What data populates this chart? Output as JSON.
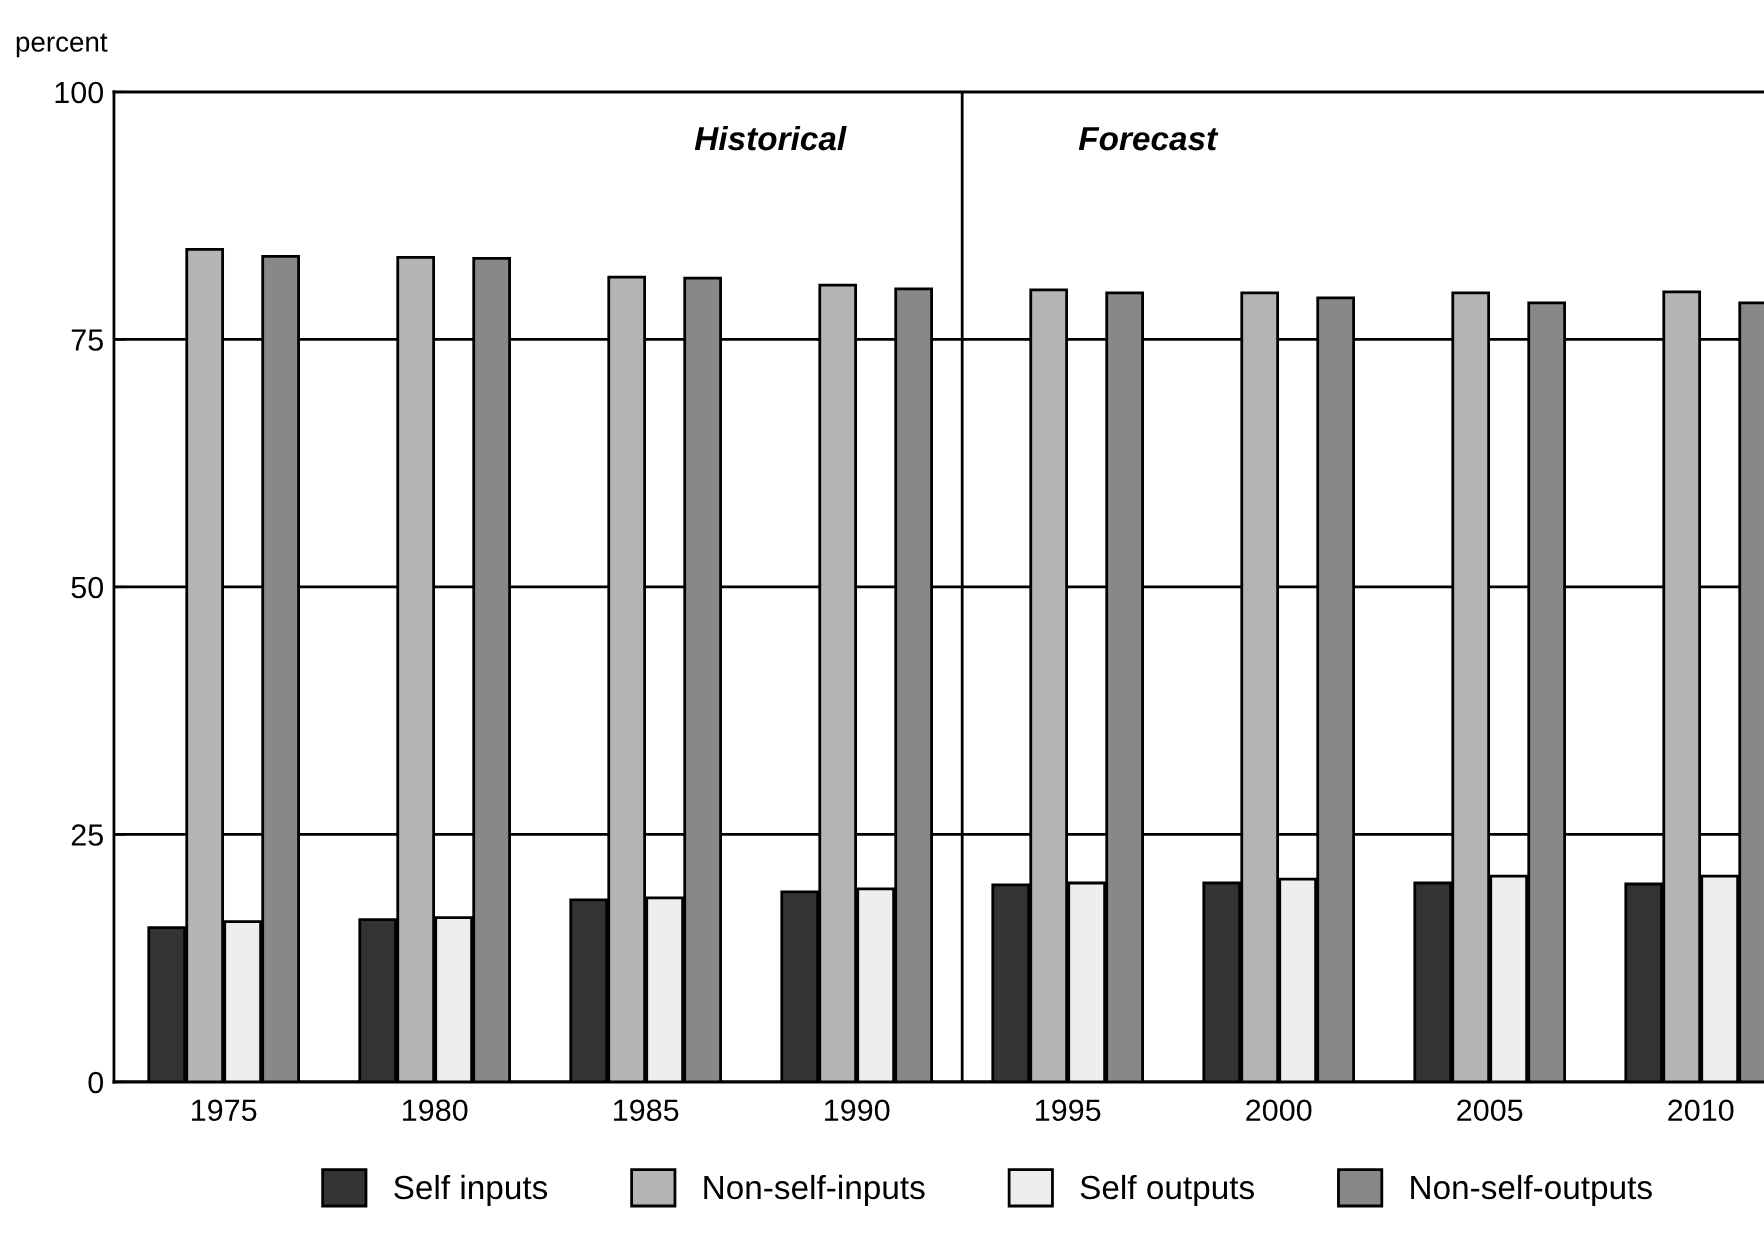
{
  "chart_data": {
    "type": "bar",
    "ylabel": "percent",
    "categories": [
      "1975",
      "1980",
      "1985",
      "1990",
      "1995",
      "2000",
      "2005",
      "2010"
    ],
    "series": [
      {
        "name": "Self inputs",
        "color": "#333333",
        "values": [
          15.6,
          16.4,
          18.4,
          19.2,
          19.9,
          20.1,
          20.1,
          20.0
        ]
      },
      {
        "name": "Non-self-inputs",
        "color": "#b4b4b4",
        "values": [
          84.1,
          83.3,
          81.3,
          80.5,
          80.0,
          79.7,
          79.7,
          79.8
        ]
      },
      {
        "name": "Self outputs",
        "color": "#eeeeee",
        "values": [
          16.2,
          16.6,
          18.6,
          19.5,
          20.1,
          20.5,
          20.8,
          20.8
        ]
      },
      {
        "name": "Non-self-outputs",
        "color": "#888888",
        "values": [
          83.4,
          83.2,
          81.2,
          80.1,
          79.7,
          79.2,
          78.7,
          78.7
        ]
      }
    ],
    "ylim": [
      0,
      100
    ],
    "yticks": [
      0,
      25,
      50,
      75,
      100
    ],
    "grid": "y",
    "legend": "bottom",
    "annotations": [
      "Historical",
      "Forecast"
    ]
  }
}
